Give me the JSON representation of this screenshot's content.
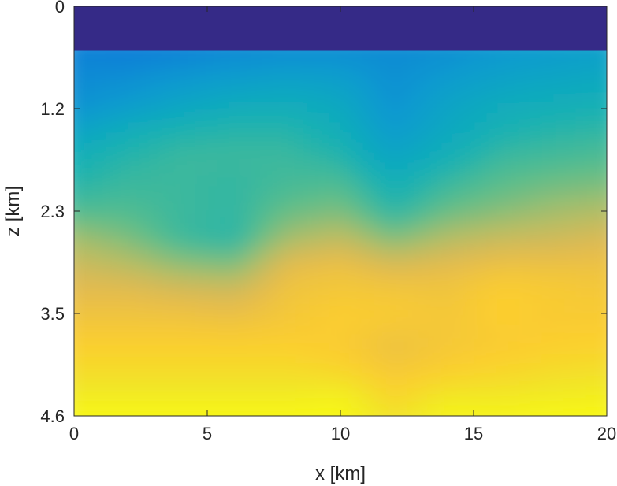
{
  "chart_data": {
    "type": "heatmap",
    "title": "",
    "xlabel": "x [km]",
    "ylabel": "z [km]",
    "xlim": [
      0,
      20
    ],
    "ylim": [
      0,
      4.6
    ],
    "y_reversed": true,
    "grid": false,
    "colorbar": false,
    "colormap": "parula",
    "x_ticks": [
      {
        "value": 0,
        "label": "0"
      },
      {
        "value": 5,
        "label": "5"
      },
      {
        "value": 10,
        "label": "10"
      },
      {
        "value": 15,
        "label": "15"
      },
      {
        "value": 20,
        "label": "20"
      }
    ],
    "y_ticks": [
      {
        "value": 0,
        "label": "0"
      },
      {
        "value": 1.15,
        "label": "1.2"
      },
      {
        "value": 2.3,
        "label": "2.3"
      },
      {
        "value": 3.45,
        "label": "3.5"
      },
      {
        "value": 4.6,
        "label": "4.6"
      }
    ],
    "water_layer_depth": 0.5,
    "x": [
      0,
      2,
      4,
      6,
      8,
      10,
      12,
      14,
      16,
      18,
      20
    ],
    "z": [
      0.5,
      0.8,
      1.1,
      1.4,
      1.7,
      2.0,
      2.3,
      2.6,
      2.9,
      3.2,
      3.5,
      3.8,
      4.1,
      4.4,
      4.6
    ],
    "values": [
      [
        0.3,
        0.28,
        0.3,
        0.33,
        0.35,
        0.35,
        0.34,
        0.36,
        0.4,
        0.42,
        0.44
      ],
      [
        0.34,
        0.36,
        0.4,
        0.43,
        0.45,
        0.44,
        0.36,
        0.42,
        0.46,
        0.48,
        0.5
      ],
      [
        0.37,
        0.42,
        0.48,
        0.52,
        0.53,
        0.5,
        0.38,
        0.47,
        0.52,
        0.54,
        0.55
      ],
      [
        0.47,
        0.54,
        0.57,
        0.58,
        0.58,
        0.54,
        0.42,
        0.5,
        0.56,
        0.58,
        0.59
      ],
      [
        0.55,
        0.58,
        0.6,
        0.6,
        0.6,
        0.58,
        0.48,
        0.55,
        0.6,
        0.61,
        0.62
      ],
      [
        0.58,
        0.6,
        0.6,
        0.59,
        0.61,
        0.62,
        0.55,
        0.6,
        0.63,
        0.65,
        0.66
      ],
      [
        0.62,
        0.62,
        0.6,
        0.59,
        0.64,
        0.66,
        0.58,
        0.64,
        0.67,
        0.7,
        0.72
      ],
      [
        0.7,
        0.66,
        0.6,
        0.58,
        0.7,
        0.74,
        0.66,
        0.72,
        0.75,
        0.76,
        0.78
      ],
      [
        0.76,
        0.73,
        0.68,
        0.66,
        0.8,
        0.82,
        0.78,
        0.8,
        0.82,
        0.82,
        0.82
      ],
      [
        0.8,
        0.8,
        0.78,
        0.77,
        0.83,
        0.84,
        0.84,
        0.83,
        0.86,
        0.85,
        0.84
      ],
      [
        0.83,
        0.83,
        0.83,
        0.82,
        0.84,
        0.86,
        0.85,
        0.84,
        0.86,
        0.85,
        0.85
      ],
      [
        0.86,
        0.86,
        0.86,
        0.86,
        0.86,
        0.85,
        0.82,
        0.84,
        0.85,
        0.86,
        0.87
      ],
      [
        0.9,
        0.9,
        0.9,
        0.9,
        0.9,
        0.88,
        0.84,
        0.86,
        0.88,
        0.9,
        0.91
      ],
      [
        0.95,
        0.95,
        0.95,
        0.95,
        0.95,
        0.97,
        0.88,
        0.94,
        0.94,
        0.95,
        0.96
      ],
      [
        0.99,
        0.99,
        0.99,
        0.99,
        0.99,
        0.99,
        0.92,
        0.98,
        0.98,
        0.99,
        0.99
      ]
    ],
    "water_value": 0.0
  }
}
